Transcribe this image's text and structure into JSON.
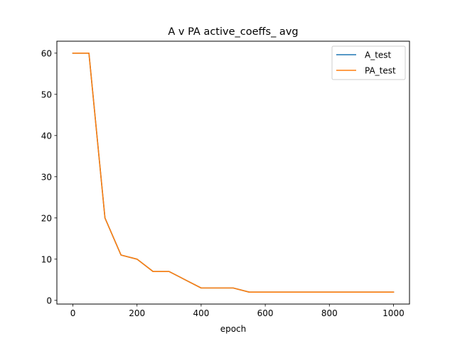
{
  "chart_data": {
    "type": "line",
    "title": "A v PA active_coeffs_ avg",
    "xlabel": "epoch",
    "ylabel": "",
    "xlim": [
      -50,
      1050
    ],
    "ylim": [
      -0.9,
      62.9
    ],
    "xticks": [
      0,
      200,
      400,
      600,
      800,
      1000
    ],
    "yticks": [
      0,
      10,
      20,
      30,
      40,
      50,
      60
    ],
    "grid": false,
    "legend": "top-right",
    "x": [
      0,
      50,
      100,
      150,
      200,
      250,
      300,
      350,
      400,
      450,
      500,
      550,
      600,
      650,
      700,
      750,
      800,
      850,
      900,
      950,
      1000
    ],
    "series": [
      {
        "name": "A_test",
        "color": "#1f77b4",
        "values": [
          60,
          60,
          20,
          11,
          10,
          7,
          7,
          5,
          3,
          3,
          3,
          2,
          2,
          2,
          2,
          2,
          2,
          2,
          2,
          2,
          2
        ]
      },
      {
        "name": "PA_test",
        "color": "#ff7f0e",
        "values": [
          60,
          60,
          20,
          11,
          10,
          7,
          7,
          5,
          3,
          3,
          3,
          2,
          2,
          2,
          2,
          2,
          2,
          2,
          2,
          2,
          2
        ]
      }
    ]
  }
}
